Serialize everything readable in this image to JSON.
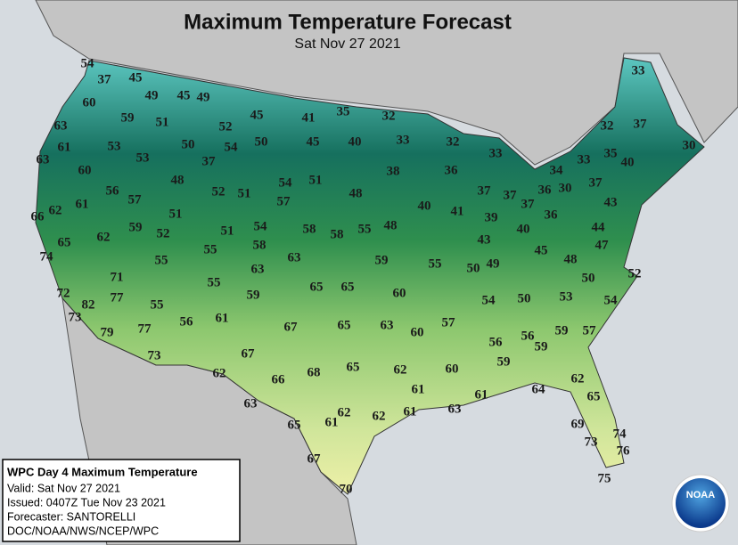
{
  "header": {
    "title": "Maximum Temperature Forecast",
    "subtitle": "Sat Nov 27 2021"
  },
  "labels": [
    54,
    37,
    45,
    49,
    45,
    49,
    60,
    59,
    51,
    52,
    45,
    41,
    35,
    32,
    63,
    61,
    53,
    50,
    54,
    50,
    45,
    40,
    33,
    32,
    33,
    33,
    37,
    32,
    30,
    35,
    40,
    33,
    34,
    63,
    60,
    53,
    37,
    48,
    52,
    51,
    54,
    51,
    48,
    38,
    36,
    56,
    57,
    61,
    62,
    66,
    57,
    51,
    54,
    40,
    41,
    37,
    37,
    37,
    36,
    30,
    37,
    36,
    43,
    39,
    40,
    65,
    62,
    59,
    52,
    51,
    58,
    58,
    58,
    55,
    48,
    43,
    45,
    48,
    44,
    47,
    74,
    55,
    55,
    63,
    63,
    59,
    55,
    50,
    49,
    50,
    52,
    71,
    55,
    59,
    65,
    65,
    60,
    72,
    77,
    82,
    55,
    54,
    50,
    53,
    54,
    73,
    56,
    61,
    67,
    65,
    63,
    60,
    57,
    56,
    56,
    59,
    57,
    59,
    79,
    77,
    73,
    67,
    65,
    68,
    60,
    59,
    62,
    62,
    66,
    62,
    61,
    61,
    64,
    65,
    63,
    62,
    61,
    62,
    61,
    63,
    65,
    69,
    74,
    73,
    76,
    67,
    70,
    75
  ],
  "info_box": {
    "heading": "WPC Day 4 Maximum Temperature",
    "lines": [
      "Valid: Sat Nov 27 2021",
      "Issued: 0407Z Tue Nov 23 2021",
      "Forecaster: SANTORELLI",
      "DOC/NOAA/NWS/NCEP/WPC"
    ]
  },
  "logo": {
    "text": "NOAA"
  }
}
